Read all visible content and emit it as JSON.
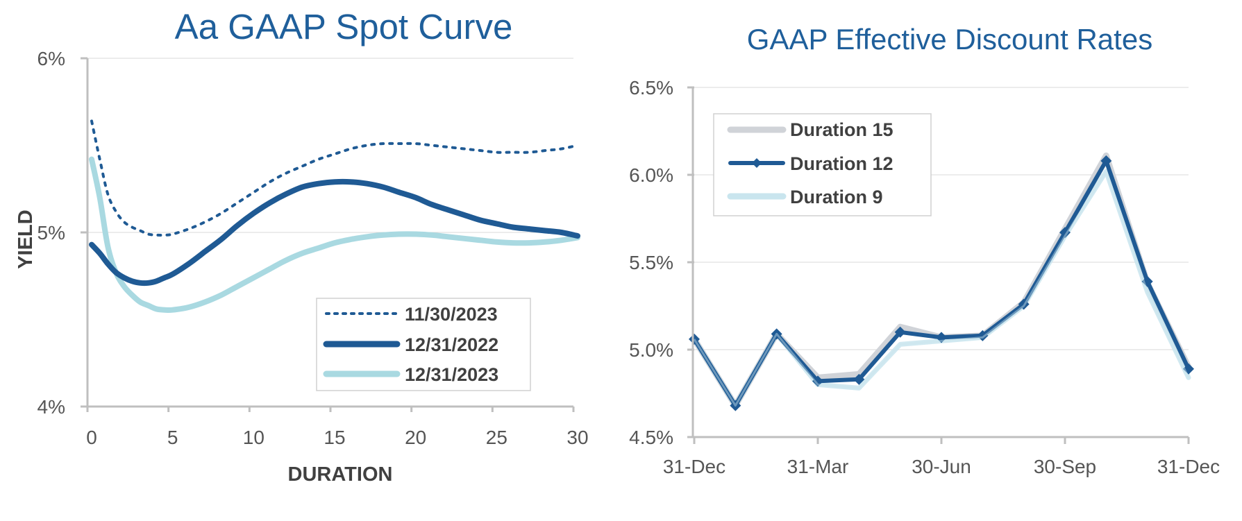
{
  "chart_data": [
    {
      "type": "line",
      "title": "Aa GAAP Spot Curve",
      "xlabel": "DURATION",
      "ylabel": "YIELD",
      "xlim": [
        0,
        30
      ],
      "ylim": [
        4,
        6
      ],
      "x_ticks": [
        0,
        5,
        10,
        15,
        20,
        25,
        30
      ],
      "x_tick_labels": [
        "0",
        "5",
        "10",
        "15",
        "20",
        "25",
        "30"
      ],
      "y_ticks": [
        4,
        5,
        6
      ],
      "y_tick_labels": [
        "4%",
        "5%",
        "6%"
      ],
      "grid": true,
      "legend_position": "bottom-right",
      "series": [
        {
          "name": "11/30/2023",
          "color": "#1f5a94",
          "style": "dotted",
          "x": [
            0,
            0.5,
            1,
            1.5,
            2,
            2.5,
            3,
            3.5,
            4,
            4.5,
            5,
            6,
            7,
            8,
            9,
            10,
            11,
            12,
            13,
            14,
            15,
            16,
            17,
            18,
            19,
            20,
            21,
            22,
            23,
            24,
            25,
            26,
            27,
            28,
            29,
            30
          ],
          "values": [
            5.64,
            5.42,
            5.22,
            5.12,
            5.06,
            5.03,
            5.01,
            4.99,
            4.985,
            4.985,
            4.99,
            5.02,
            5.06,
            5.11,
            5.17,
            5.23,
            5.29,
            5.34,
            5.38,
            5.42,
            5.45,
            5.48,
            5.5,
            5.51,
            5.51,
            5.51,
            5.5,
            5.49,
            5.48,
            5.47,
            5.46,
            5.46,
            5.46,
            5.47,
            5.48,
            5.5
          ]
        },
        {
          "name": "12/31/2022",
          "color": "#1f5a94",
          "style": "solid",
          "x": [
            0,
            0.5,
            1,
            1.5,
            2,
            2.5,
            3,
            3.5,
            4,
            4.5,
            5,
            6,
            7,
            8,
            9,
            10,
            11,
            12,
            13,
            14,
            15,
            16,
            17,
            18,
            19,
            20,
            21,
            22,
            23,
            24,
            25,
            26,
            27,
            28,
            29,
            30
          ],
          "values": [
            4.93,
            4.88,
            4.82,
            4.77,
            4.74,
            4.72,
            4.71,
            4.71,
            4.72,
            4.74,
            4.76,
            4.82,
            4.89,
            4.96,
            5.04,
            5.11,
            5.17,
            5.22,
            5.26,
            5.28,
            5.29,
            5.29,
            5.28,
            5.26,
            5.23,
            5.2,
            5.16,
            5.13,
            5.1,
            5.07,
            5.05,
            5.03,
            5.02,
            5.01,
            5.0,
            4.98
          ]
        },
        {
          "name": "12/31/2023",
          "color": "#a9d9e1",
          "style": "solid",
          "x": [
            0,
            0.5,
            1,
            1.5,
            2,
            2.5,
            3,
            3.5,
            4,
            4.5,
            5,
            6,
            7,
            8,
            9,
            10,
            11,
            12,
            13,
            14,
            15,
            16,
            17,
            18,
            19,
            20,
            21,
            22,
            23,
            24,
            25,
            26,
            27,
            28,
            29,
            30
          ],
          "values": [
            5.42,
            5.2,
            4.92,
            4.77,
            4.69,
            4.64,
            4.6,
            4.58,
            4.56,
            4.555,
            4.555,
            4.57,
            4.6,
            4.64,
            4.69,
            4.74,
            4.79,
            4.84,
            4.88,
            4.91,
            4.94,
            4.96,
            4.975,
            4.985,
            4.99,
            4.99,
            4.985,
            4.975,
            4.965,
            4.955,
            4.945,
            4.94,
            4.94,
            4.945,
            4.955,
            4.97
          ]
        }
      ]
    },
    {
      "type": "line",
      "title": "GAAP Effective Discount Rates",
      "xlabel": "",
      "ylabel": "",
      "xlim": [
        0,
        12
      ],
      "ylim": [
        4.5,
        6.5
      ],
      "x_ticks": [
        0,
        3,
        6,
        9,
        12
      ],
      "x_tick_labels": [
        "31-Dec",
        "31-Mar",
        "30-Jun",
        "30-Sep",
        "31-Dec"
      ],
      "y_ticks": [
        4.5,
        5.0,
        5.5,
        6.0,
        6.5
      ],
      "y_tick_labels": [
        "4.5%",
        "5.0%",
        "5.5%",
        "6.0%",
        "6.5%"
      ],
      "grid": true,
      "legend_position": "top-left",
      "series": [
        {
          "name": "Duration 15",
          "color": "#d0d3d8",
          "marker": false,
          "x": [
            0,
            1,
            2,
            3,
            4,
            5,
            6,
            7,
            8,
            9,
            10,
            11,
            12
          ],
          "values": [
            5.06,
            4.68,
            5.09,
            4.84,
            4.86,
            5.13,
            5.07,
            5.08,
            5.27,
            5.69,
            6.11,
            5.38,
            4.9
          ]
        },
        {
          "name": "Duration 12",
          "color": "#1f5a94",
          "marker": true,
          "x": [
            0,
            1,
            2,
            3,
            4,
            5,
            6,
            7,
            8,
            9,
            10,
            11,
            12
          ],
          "values": [
            5.06,
            4.68,
            5.09,
            4.82,
            4.83,
            5.1,
            5.07,
            5.08,
            5.26,
            5.67,
            6.08,
            5.39,
            4.89
          ]
        },
        {
          "name": "Duration 9",
          "color": "#c9e5ee",
          "marker": false,
          "x": [
            0,
            1,
            2,
            3,
            4,
            5,
            6,
            7,
            8,
            9,
            10,
            11,
            12
          ],
          "values": [
            5.06,
            4.68,
            5.09,
            4.8,
            4.78,
            5.03,
            5.05,
            5.07,
            5.25,
            5.65,
            6.02,
            5.33,
            4.84
          ]
        }
      ]
    }
  ]
}
